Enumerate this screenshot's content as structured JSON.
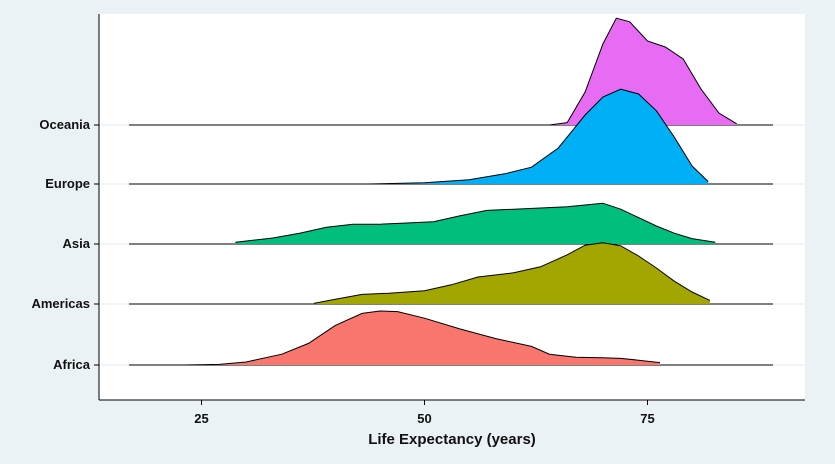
{
  "chart_data": {
    "type": "ridgeline",
    "xlabel": "Life Expectancy (years)",
    "ylabel": "",
    "xlim": [
      13,
      92
    ],
    "x_ticks": [
      25,
      50,
      75
    ],
    "grid": true,
    "categories": [
      "Africa",
      "Americas",
      "Asia",
      "Europe",
      "Oceania"
    ],
    "series": [
      {
        "name": "Africa",
        "color": "#F8766D",
        "range": [
          23.6,
          76.4
        ],
        "density_points": [
          [
            23,
            0.0
          ],
          [
            27,
            0.01
          ],
          [
            30,
            0.05
          ],
          [
            34,
            0.18
          ],
          [
            37,
            0.36
          ],
          [
            40,
            0.66
          ],
          [
            43,
            0.86
          ],
          [
            45,
            0.9
          ],
          [
            47,
            0.89
          ],
          [
            50,
            0.78
          ],
          [
            54,
            0.6
          ],
          [
            58,
            0.44
          ],
          [
            62,
            0.31
          ],
          [
            64,
            0.18
          ],
          [
            67,
            0.13
          ],
          [
            70,
            0.12
          ],
          [
            72,
            0.11
          ],
          [
            74,
            0.08
          ],
          [
            76.4,
            0.04
          ]
        ]
      },
      {
        "name": "Americas",
        "color": "#A3A500",
        "range": [
          37.6,
          82.0
        ],
        "density_points": [
          [
            37.6,
            0.01
          ],
          [
            40,
            0.08
          ],
          [
            43,
            0.16
          ],
          [
            46,
            0.18
          ],
          [
            50,
            0.22
          ],
          [
            53,
            0.32
          ],
          [
            56,
            0.45
          ],
          [
            60,
            0.52
          ],
          [
            63,
            0.62
          ],
          [
            66,
            0.82
          ],
          [
            68,
            0.98
          ],
          [
            70,
            1.02
          ],
          [
            72,
            0.97
          ],
          [
            74,
            0.8
          ],
          [
            76,
            0.6
          ],
          [
            78,
            0.38
          ],
          [
            80,
            0.2
          ],
          [
            82,
            0.06
          ]
        ]
      },
      {
        "name": "Asia",
        "color": "#00BF7D",
        "range": [
          28.8,
          82.6
        ],
        "density_points": [
          [
            28.8,
            0.03
          ],
          [
            33,
            0.1
          ],
          [
            36,
            0.18
          ],
          [
            39,
            0.28
          ],
          [
            42,
            0.33
          ],
          [
            45,
            0.33
          ],
          [
            48,
            0.35
          ],
          [
            51,
            0.37
          ],
          [
            54,
            0.47
          ],
          [
            57,
            0.56
          ],
          [
            60,
            0.58
          ],
          [
            63,
            0.6
          ],
          [
            66,
            0.62
          ],
          [
            68,
            0.65
          ],
          [
            70,
            0.68
          ],
          [
            72,
            0.58
          ],
          [
            74,
            0.44
          ],
          [
            76,
            0.3
          ],
          [
            78,
            0.18
          ],
          [
            80,
            0.09
          ],
          [
            82.6,
            0.03
          ]
        ]
      },
      {
        "name": "Europe",
        "color": "#00B0F6",
        "range": [
          43.6,
          81.8
        ],
        "density_points": [
          [
            43.6,
            0.0
          ],
          [
            50,
            0.02
          ],
          [
            55,
            0.07
          ],
          [
            59,
            0.17
          ],
          [
            62,
            0.28
          ],
          [
            65,
            0.6
          ],
          [
            68,
            1.15
          ],
          [
            70,
            1.45
          ],
          [
            72,
            1.58
          ],
          [
            74,
            1.5
          ],
          [
            76,
            1.22
          ],
          [
            78,
            0.78
          ],
          [
            80,
            0.3
          ],
          [
            81.8,
            0.04
          ]
        ]
      },
      {
        "name": "Oceania",
        "color": "#E76BF3",
        "range": [
          69.1,
          81.2
        ],
        "density_points": [
          [
            64,
            0.0
          ],
          [
            66,
            0.04
          ],
          [
            68,
            0.55
          ],
          [
            70,
            1.35
          ],
          [
            71.5,
            1.78
          ],
          [
            73,
            1.72
          ],
          [
            75,
            1.4
          ],
          [
            77,
            1.3
          ],
          [
            79,
            1.1
          ],
          [
            81,
            0.6
          ],
          [
            83,
            0.2
          ],
          [
            85,
            0.02
          ]
        ]
      }
    ]
  }
}
